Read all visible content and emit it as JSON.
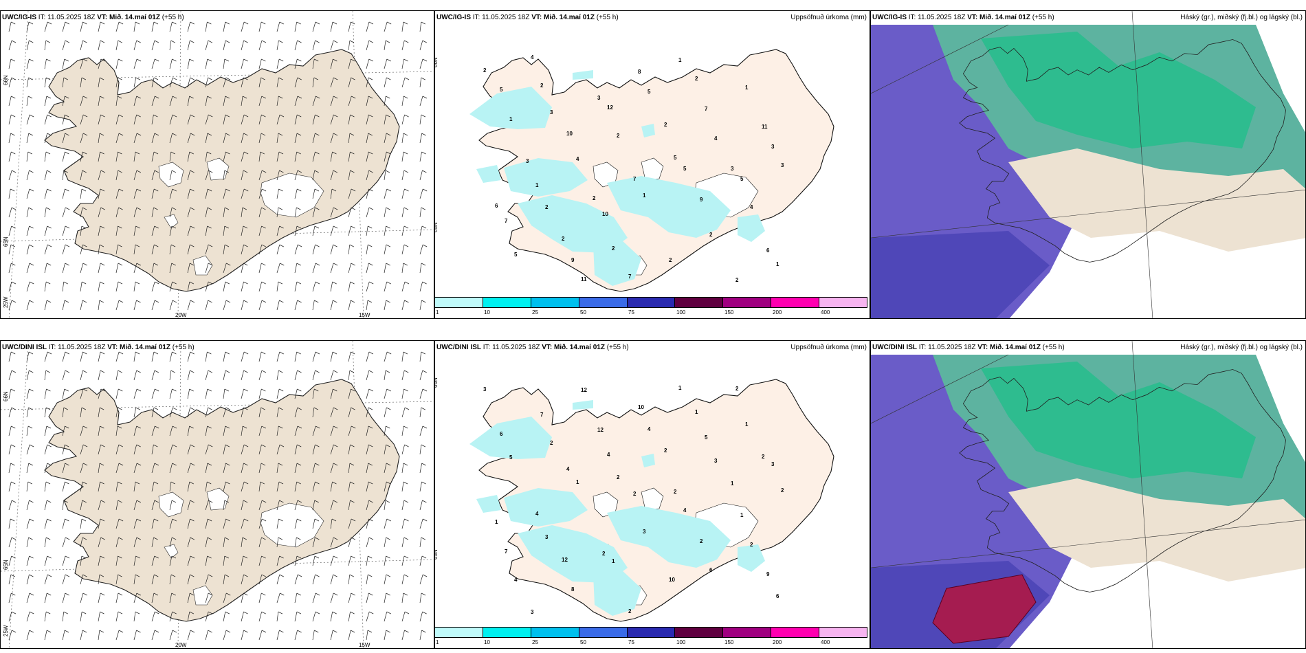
{
  "rows": [
    {
      "model": "UWC/IG-IS",
      "it_label": "IT:",
      "it_value": "11.05.2025 18Z",
      "vt_label": "VT:",
      "vt_value": "Mið. 14.maí 01Z",
      "lead": "(+55 h)",
      "lat_labels": [
        "66N",
        "65N"
      ],
      "lon_labels": [
        "25W",
        "20W",
        "15W"
      ]
    },
    {
      "model": "UWC/DINI ISL",
      "it_label": "IT:",
      "it_value": "11.05.2025 18Z",
      "vt_label": "VT:",
      "vt_value": "Mið. 14.maí 01Z",
      "lead": "(+55 h)",
      "lat_labels": [
        "66N",
        "65N"
      ],
      "lon_labels": [
        "25W",
        "20W",
        "15W"
      ]
    }
  ],
  "precip_title": "Uppsöfnuð úrkoma (mm)",
  "cloud_title": "Háský (gr.), miðský (fj.bl.) og lágský (bl.)",
  "colorbar": {
    "ticks": [
      "1",
      "10",
      "25",
      "50",
      "75",
      "100",
      "150",
      "200",
      "400"
    ],
    "colors": [
      "#c0fafa",
      "#00f0f0",
      "#00c0ee",
      "#3a6be8",
      "#2a2ab0",
      "#600040",
      "#a00080",
      "#ff00b0",
      "#f7b4f0"
    ]
  },
  "precip_values": {
    "top": [
      "2",
      "3",
      "2",
      "5",
      "4",
      "5",
      "11",
      "5",
      "4",
      "3",
      "2",
      "2",
      "1",
      "1",
      "1",
      "4",
      "1",
      "2",
      "1",
      "2",
      "12",
      "5",
      "5",
      "7",
      "9",
      "8",
      "7",
      "3",
      "1",
      "10",
      "2",
      "2",
      "5",
      "10",
      "7",
      "9",
      "6",
      "4",
      "3",
      "2",
      "3",
      "6",
      "2",
      "7",
      "2",
      "11",
      "3",
      "2"
    ],
    "bottom": [
      "3",
      "2",
      "2",
      "4",
      "2",
      "4",
      "12",
      "4",
      "3",
      "2",
      "3",
      "1",
      "1",
      "1",
      "5",
      "1",
      "3",
      "6",
      "6",
      "7",
      "4",
      "2",
      "1",
      "7",
      "8",
      "10",
      "5",
      "3",
      "4",
      "2",
      "10",
      "2",
      "6",
      "4",
      "2",
      "2",
      "9",
      "3",
      "12",
      "2",
      "1",
      "1",
      "12",
      "2",
      "1",
      "2"
    ]
  },
  "colors": {
    "land": "#ede2d2",
    "land2": "#fdf0e6",
    "precip": "#b8f3f4",
    "sea_low": "#6a5cc8",
    "mid": "#1fbf8a",
    "high": "#5db3a0"
  }
}
